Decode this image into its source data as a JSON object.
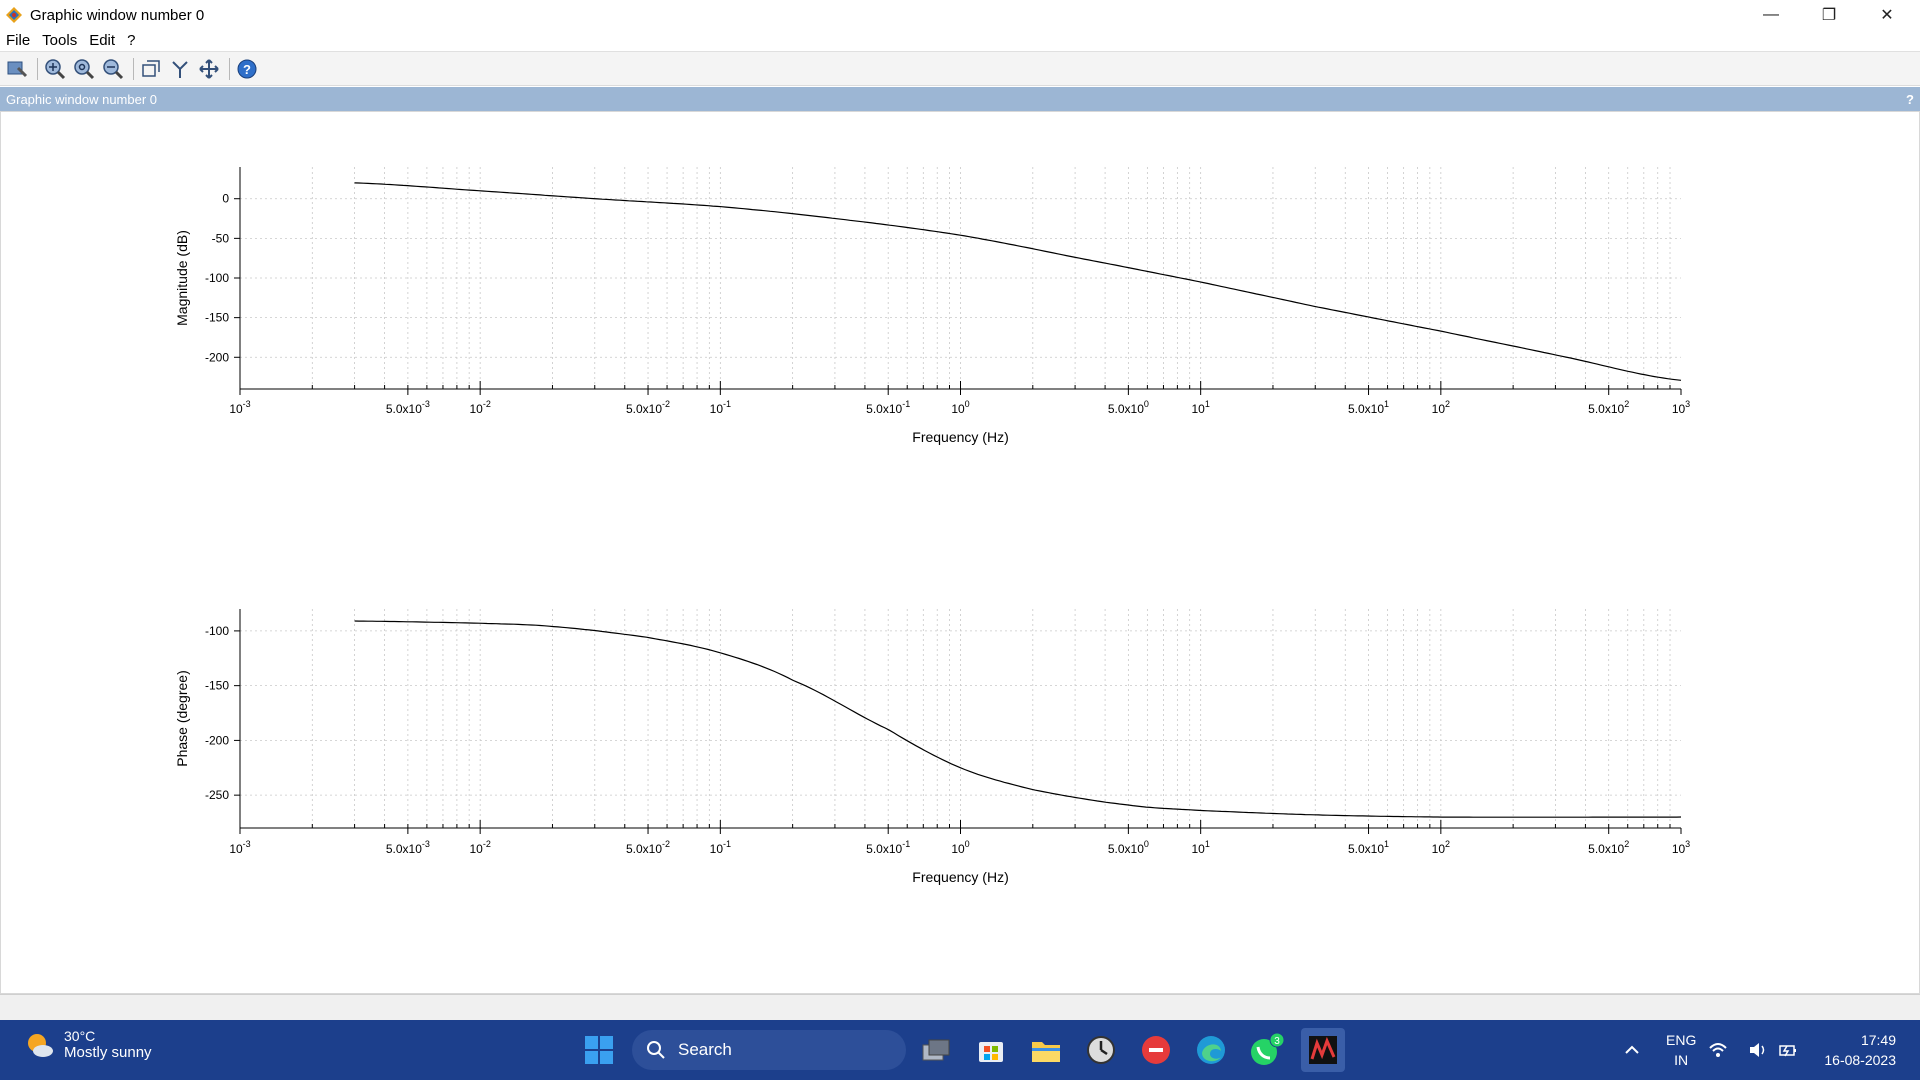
{
  "window": {
    "title": "Graphic window number 0",
    "minimize_glyph": "—",
    "restore_glyph": "❐",
    "close_glyph": "✕"
  },
  "menu": {
    "items": [
      "File",
      "Tools",
      "Edit",
      "?"
    ]
  },
  "toolbar": {
    "icons": [
      "datatip-icon",
      "zoom-in-icon",
      "zoom-reset-icon",
      "zoom-out-icon",
      "rotate-3d-icon",
      "data-tips-icon",
      "pan-icon",
      "help-icon"
    ]
  },
  "docked_bar": {
    "label": "Graphic window number 0",
    "help": "?"
  },
  "chart_data": [
    {
      "type": "line",
      "xlabel": "Frequency (Hz)",
      "ylabel": "Magnitude (dB)",
      "xscale": "log",
      "xlim": [
        0.001,
        1000
      ],
      "ylim": [
        -240,
        40
      ],
      "yticks": [
        0,
        -50,
        -100,
        -150,
        -200
      ],
      "ytick_labels": [
        "0",
        "-50",
        "-100",
        "-150",
        "-200"
      ],
      "xtick_labels": [
        {
          "base": "10",
          "exp": "-3",
          "value": 0.001
        },
        {
          "base": "5.0x10",
          "exp": "-3",
          "value": 0.005
        },
        {
          "base": "10",
          "exp": "-2",
          "value": 0.01
        },
        {
          "base": "5.0x10",
          "exp": "-2",
          "value": 0.05
        },
        {
          "base": "10",
          "exp": "-1",
          "value": 0.1
        },
        {
          "base": "5.0x10",
          "exp": "-1",
          "value": 0.5
        },
        {
          "base": "10",
          "exp": "0",
          "value": 1
        },
        {
          "base": "5.0x10",
          "exp": "0",
          "value": 5
        },
        {
          "base": "10",
          "exp": "1",
          "value": 10
        },
        {
          "base": "5.0x10",
          "exp": "1",
          "value": 50
        },
        {
          "base": "10",
          "exp": "2",
          "value": 100
        },
        {
          "base": "5.0x10",
          "exp": "2",
          "value": 500
        },
        {
          "base": "10",
          "exp": "3",
          "value": 1000
        }
      ],
      "grid": true,
      "series": [
        {
          "x": [
            0.003,
            0.01,
            0.03,
            0.1,
            0.3,
            1,
            3,
            10,
            30,
            100,
            300,
            1000
          ],
          "values": [
            20,
            10,
            0,
            -10,
            -25,
            -46,
            -74,
            -105,
            -136,
            -167,
            -197,
            -229
          ]
        }
      ]
    },
    {
      "type": "line",
      "xlabel": "Frequency (Hz)",
      "ylabel": "Phase (degree)",
      "xscale": "log",
      "xlim": [
        0.001,
        1000
      ],
      "ylim": [
        -280,
        -80
      ],
      "yticks": [
        -100,
        -150,
        -200,
        -250
      ],
      "ytick_labels": [
        "-100",
        "-150",
        "-200",
        "-250"
      ],
      "xtick_labels": [
        {
          "base": "10",
          "exp": "-3",
          "value": 0.001
        },
        {
          "base": "5.0x10",
          "exp": "-3",
          "value": 0.005
        },
        {
          "base": "10",
          "exp": "-2",
          "value": 0.01
        },
        {
          "base": "5.0x10",
          "exp": "-2",
          "value": 0.05
        },
        {
          "base": "10",
          "exp": "-1",
          "value": 0.1
        },
        {
          "base": "5.0x10",
          "exp": "-1",
          "value": 0.5
        },
        {
          "base": "10",
          "exp": "0",
          "value": 1
        },
        {
          "base": "5.0x10",
          "exp": "0",
          "value": 5
        },
        {
          "base": "10",
          "exp": "1",
          "value": 10
        },
        {
          "base": "5.0x10",
          "exp": "1",
          "value": 50
        },
        {
          "base": "10",
          "exp": "2",
          "value": 100
        },
        {
          "base": "5.0x10",
          "exp": "2",
          "value": 500
        },
        {
          "base": "10",
          "exp": "3",
          "value": 1000
        }
      ],
      "grid": true,
      "series": [
        {
          "x": [
            0.003,
            0.01,
            0.02,
            0.05,
            0.1,
            0.2,
            0.5,
            1,
            2,
            5,
            10,
            30,
            100,
            1000
          ],
          "values": [
            -91,
            -93,
            -96,
            -106,
            -120,
            -145,
            -190,
            -225,
            -245,
            -259,
            -264,
            -268,
            -270,
            -270
          ]
        }
      ]
    }
  ],
  "taskbar": {
    "weather_temp": "30°C",
    "weather_desc": "Mostly sunny",
    "search_placeholder": "Search",
    "whatsapp_badge": "3",
    "lang_top": "ENG",
    "lang_bottom": "IN",
    "time": "17:49",
    "date": "16-08-2023"
  }
}
